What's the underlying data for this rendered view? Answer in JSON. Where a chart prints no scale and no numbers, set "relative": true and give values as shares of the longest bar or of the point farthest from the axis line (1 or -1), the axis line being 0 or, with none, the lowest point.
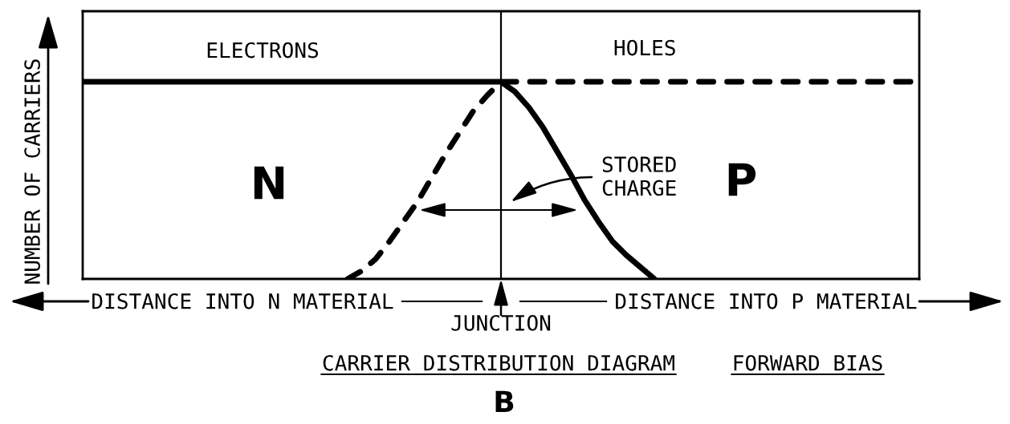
{
  "chart_data": {
    "type": "line",
    "relative": true,
    "title": "CARRIER DISTRIBUTION DIAGRAM",
    "subtitle": "FORWARD BIAS",
    "ylabel": "NUMBER OF CARRIERS",
    "categories": [
      null,
      null,
      null,
      null,
      null,
      null,
      null,
      null,
      null,
      null,
      null,
      null,
      null,
      null,
      null,
      null,
      null,
      null,
      null,
      null,
      null,
      null,
      null,
      null,
      null,
      null,
      null,
      null,
      null,
      null,
      null,
      null,
      null,
      null,
      null,
      null,
      null,
      null,
      null,
      null,
      null,
      null,
      null,
      null,
      null,
      null,
      null,
      null,
      null,
      null,
      null,
      null,
      null,
      null,
      null,
      null,
      null,
      null,
      null,
      null,
      null
    ],
    "series": [
      {
        "name": "ELECTRONS",
        "color": "#000000",
        "line_style": "solid",
        "values": [
          1,
          1,
          1,
          1,
          1,
          1,
          1,
          1,
          1,
          1,
          1,
          1,
          1,
          1,
          1,
          1,
          1,
          1,
          1,
          1,
          1,
          1,
          1,
          1,
          1,
          1,
          1,
          1,
          1,
          1,
          1,
          0.95,
          0.87,
          0.77,
          0.65,
          0.53,
          0.4,
          0.29,
          0.19,
          0.12,
          0.06,
          0,
          null,
          null,
          null,
          null,
          null,
          null,
          null,
          null,
          null,
          null,
          null,
          null,
          null,
          null,
          null,
          null,
          null,
          null,
          null
        ]
      },
      {
        "name": "HOLES",
        "color": "#000000",
        "line_style": "dashed",
        "values": [
          null,
          null,
          null,
          null,
          null,
          null,
          null,
          null,
          null,
          null,
          null,
          null,
          null,
          null,
          null,
          null,
          null,
          null,
          null,
          0,
          0.04,
          0.1,
          0.19,
          0.29,
          0.39,
          0.51,
          0.63,
          0.74,
          0.85,
          0.93,
          1,
          1,
          1,
          1,
          1,
          1,
          1,
          1,
          1,
          1,
          1,
          1,
          1,
          1,
          1,
          1,
          1,
          1,
          1,
          1,
          1,
          1,
          1,
          1,
          1,
          1,
          1,
          1,
          1,
          1,
          1
        ]
      }
    ],
    "ref_lines": [
      {
        "axis": "x",
        "label": "JUNCTION",
        "color": "#000000"
      }
    ],
    "annotations": [
      "N",
      "P",
      "STORED\nCHARGE",
      "DISTANCE INTO N MATERIAL",
      "DISTANCE INTO P MATERIAL",
      "B"
    ]
  }
}
